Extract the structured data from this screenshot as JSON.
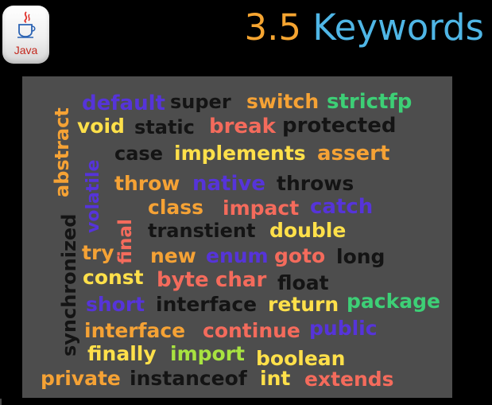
{
  "logo": {
    "label": "Java"
  },
  "title": {
    "number": "3.5",
    "text": "Keywords"
  },
  "colors": {
    "purple": "#5634d9",
    "black": "#141414",
    "orange": "#f5a235",
    "green": "#3dcf76",
    "coral": "#f46b5c",
    "yellow": "#ffe04a",
    "lime": "#a8e340",
    "board": "#4d4d4d"
  },
  "words": {
    "default": "default",
    "super": "super",
    "switch": "switch",
    "strictfp": "strictfp",
    "void": "void",
    "static": "static",
    "break": "break",
    "protected": "protected",
    "case": "case",
    "implements": "implements",
    "assert": "assert",
    "throw": "throw",
    "native": "native",
    "throws": "throws",
    "class": "class",
    "impact": "impact",
    "catch": "catch",
    "transtient": "transtient",
    "double": "double",
    "try": "try",
    "new": "new",
    "enum": "enum",
    "goto": "goto",
    "long": "long",
    "const": "const",
    "byte": "byte",
    "char": "char",
    "float": "float",
    "short": "short",
    "interface_1": "interface",
    "return": "return",
    "package": "package",
    "interface_2": "interface",
    "continue": "continue",
    "public": "public",
    "finally": "finally",
    "import": "import",
    "boolean": "boolean",
    "private": "private",
    "instanceof": "instanceof",
    "int": "int",
    "extends": "extends",
    "abstract": "abstract",
    "volatile": "volatile",
    "synchronized": "synchronized",
    "final": "final"
  }
}
